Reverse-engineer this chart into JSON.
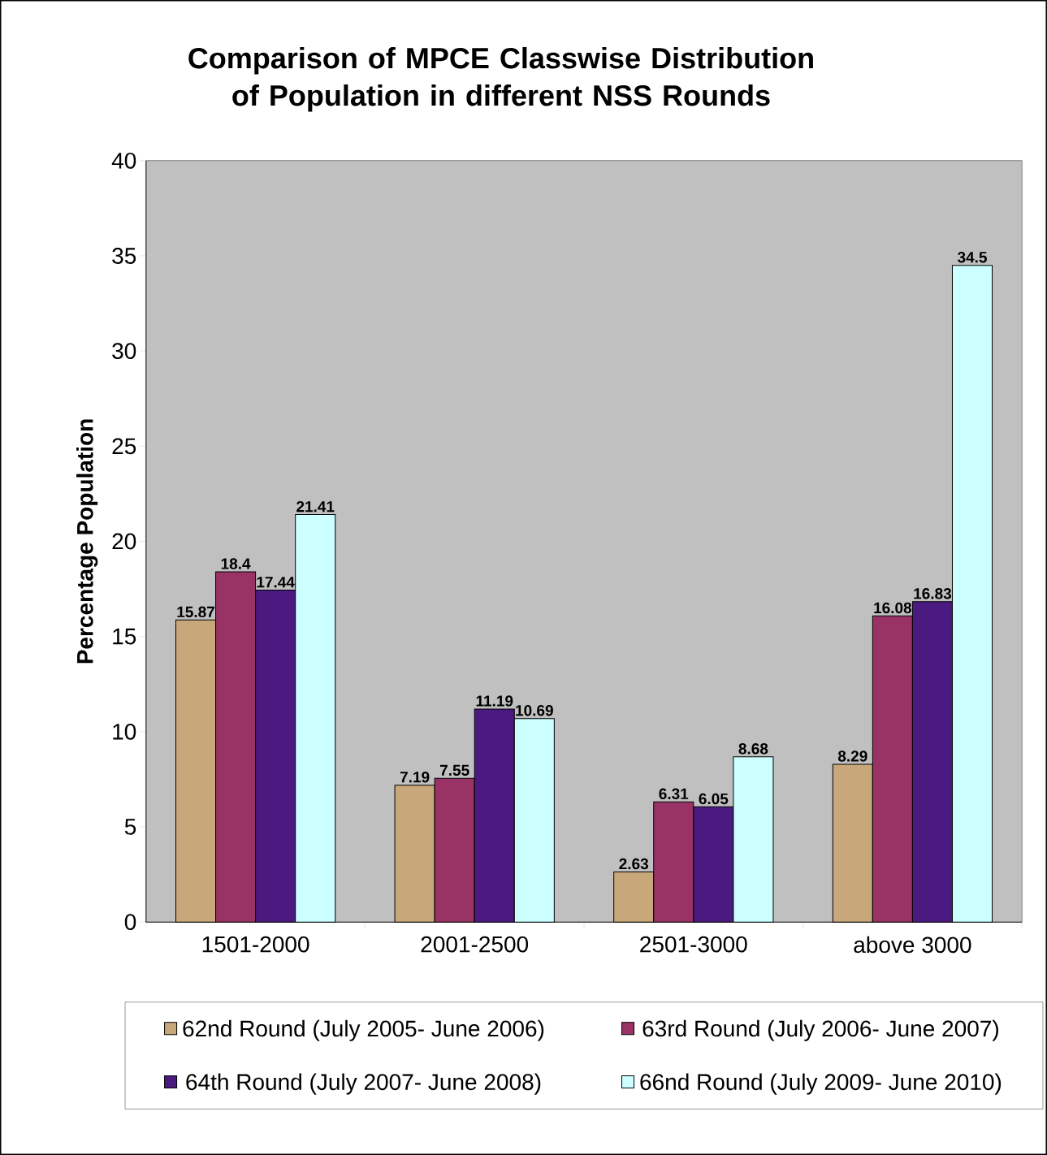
{
  "chart_data": {
    "type": "bar",
    "title": "Comparison of MPCE Classwise Distribution of Population in different NSS Rounds",
    "ylabel": "Percentage Population",
    "categories": [
      "1501-2000",
      "2001-2500",
      "2501-3000",
      "above 3000"
    ],
    "series": [
      {
        "name": "62nd Round (July 2005- June 2006)",
        "color": "#c8a87a",
        "values": [
          15.87,
          7.19,
          2.63,
          8.29
        ]
      },
      {
        "name": "63rd Round (July 2006- June 2007)",
        "color": "#993366",
        "values": [
          18.4,
          7.55,
          6.31,
          16.08
        ]
      },
      {
        "name": "64th Round (July 2007- June 2008)",
        "color": "#4b1a80",
        "values": [
          17.44,
          11.19,
          6.05,
          16.83
        ]
      },
      {
        "name": "66nd Round (July 2009- June 2010)",
        "color": "#ccffff",
        "values": [
          21.41,
          10.69,
          8.68,
          34.5
        ]
      }
    ],
    "ylim": [
      0,
      40
    ],
    "yticks": [
      0,
      5,
      10,
      15,
      20,
      25,
      30,
      35,
      40
    ],
    "data_labels": true,
    "legend": "bottom"
  }
}
